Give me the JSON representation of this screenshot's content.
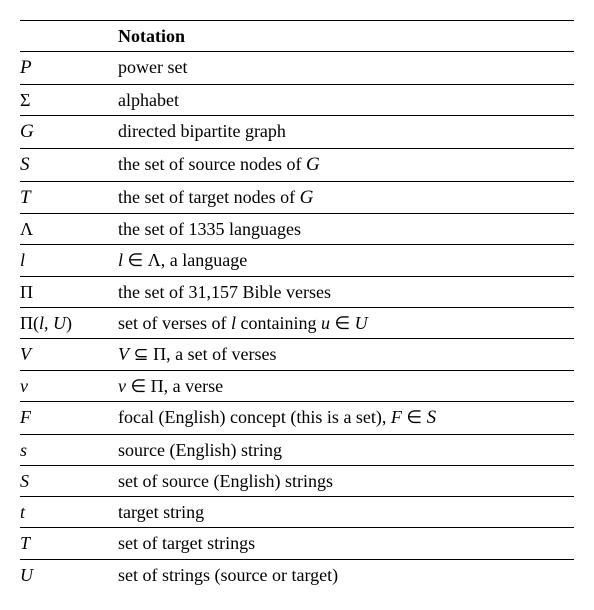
{
  "header": {
    "symbol": "",
    "desc": "Notation"
  },
  "rows": [
    {
      "sym_html": "<span class=\"cal\">P</span>",
      "desc": "power set"
    },
    {
      "sym_html": "Σ",
      "desc": "alphabet"
    },
    {
      "sym_html": "<span class=\"cal\">G</span>",
      "desc": "directed bipartite graph"
    },
    {
      "sym_html": "<span class=\"cal\">S</span>",
      "desc_html": "the set of source nodes of <span class=\"cal\">G</span>"
    },
    {
      "sym_html": "<span class=\"cal\">T</span>",
      "desc_html": "the set of target nodes of <span class=\"cal\">G</span>"
    },
    {
      "sym_html": "Λ",
      "desc": "the set of 1335 languages"
    },
    {
      "sym_html": "<span class=\"it\">l</span>",
      "desc_html": "<span class=\"it\">l</span> ∈ Λ, a language"
    },
    {
      "sym_html": "Π",
      "desc": "the set of 31,157 Bible verses"
    },
    {
      "sym_html": "Π(<span class=\"it\">l</span>, <span class=\"it\">U</span>)",
      "desc_html": "set of verses of <span class=\"it\">l</span> containing <span class=\"it\">u</span> ∈ <span class=\"it\">U</span>"
    },
    {
      "sym_html": "<span class=\"it\">V</span>",
      "desc_html": "<span class=\"it\">V</span> ⊆ Π, a set of verses"
    },
    {
      "sym_html": "<span class=\"it\">v</span>",
      "desc_html": "<span class=\"it\">v</span> ∈ Π, a verse"
    },
    {
      "sym_html": "<span class=\"it\">F</span>",
      "desc_html": "focal (English) concept (this is a set), <span class=\"it\">F</span> ∈ <span class=\"cal\">S</span>"
    },
    {
      "sym_html": "<span class=\"it\">s</span>",
      "desc": "source (English) string"
    },
    {
      "sym_html": "<span class=\"it\">S</span>",
      "desc": "set of source (English) strings"
    },
    {
      "sym_html": "<span class=\"it\">t</span>",
      "desc": "target string"
    },
    {
      "sym_html": "<span class=\"it\">T</span>",
      "desc": "set of target strings"
    },
    {
      "sym_html": "<span class=\"it\">U</span>",
      "desc": "set of strings (source or target)"
    }
  ]
}
